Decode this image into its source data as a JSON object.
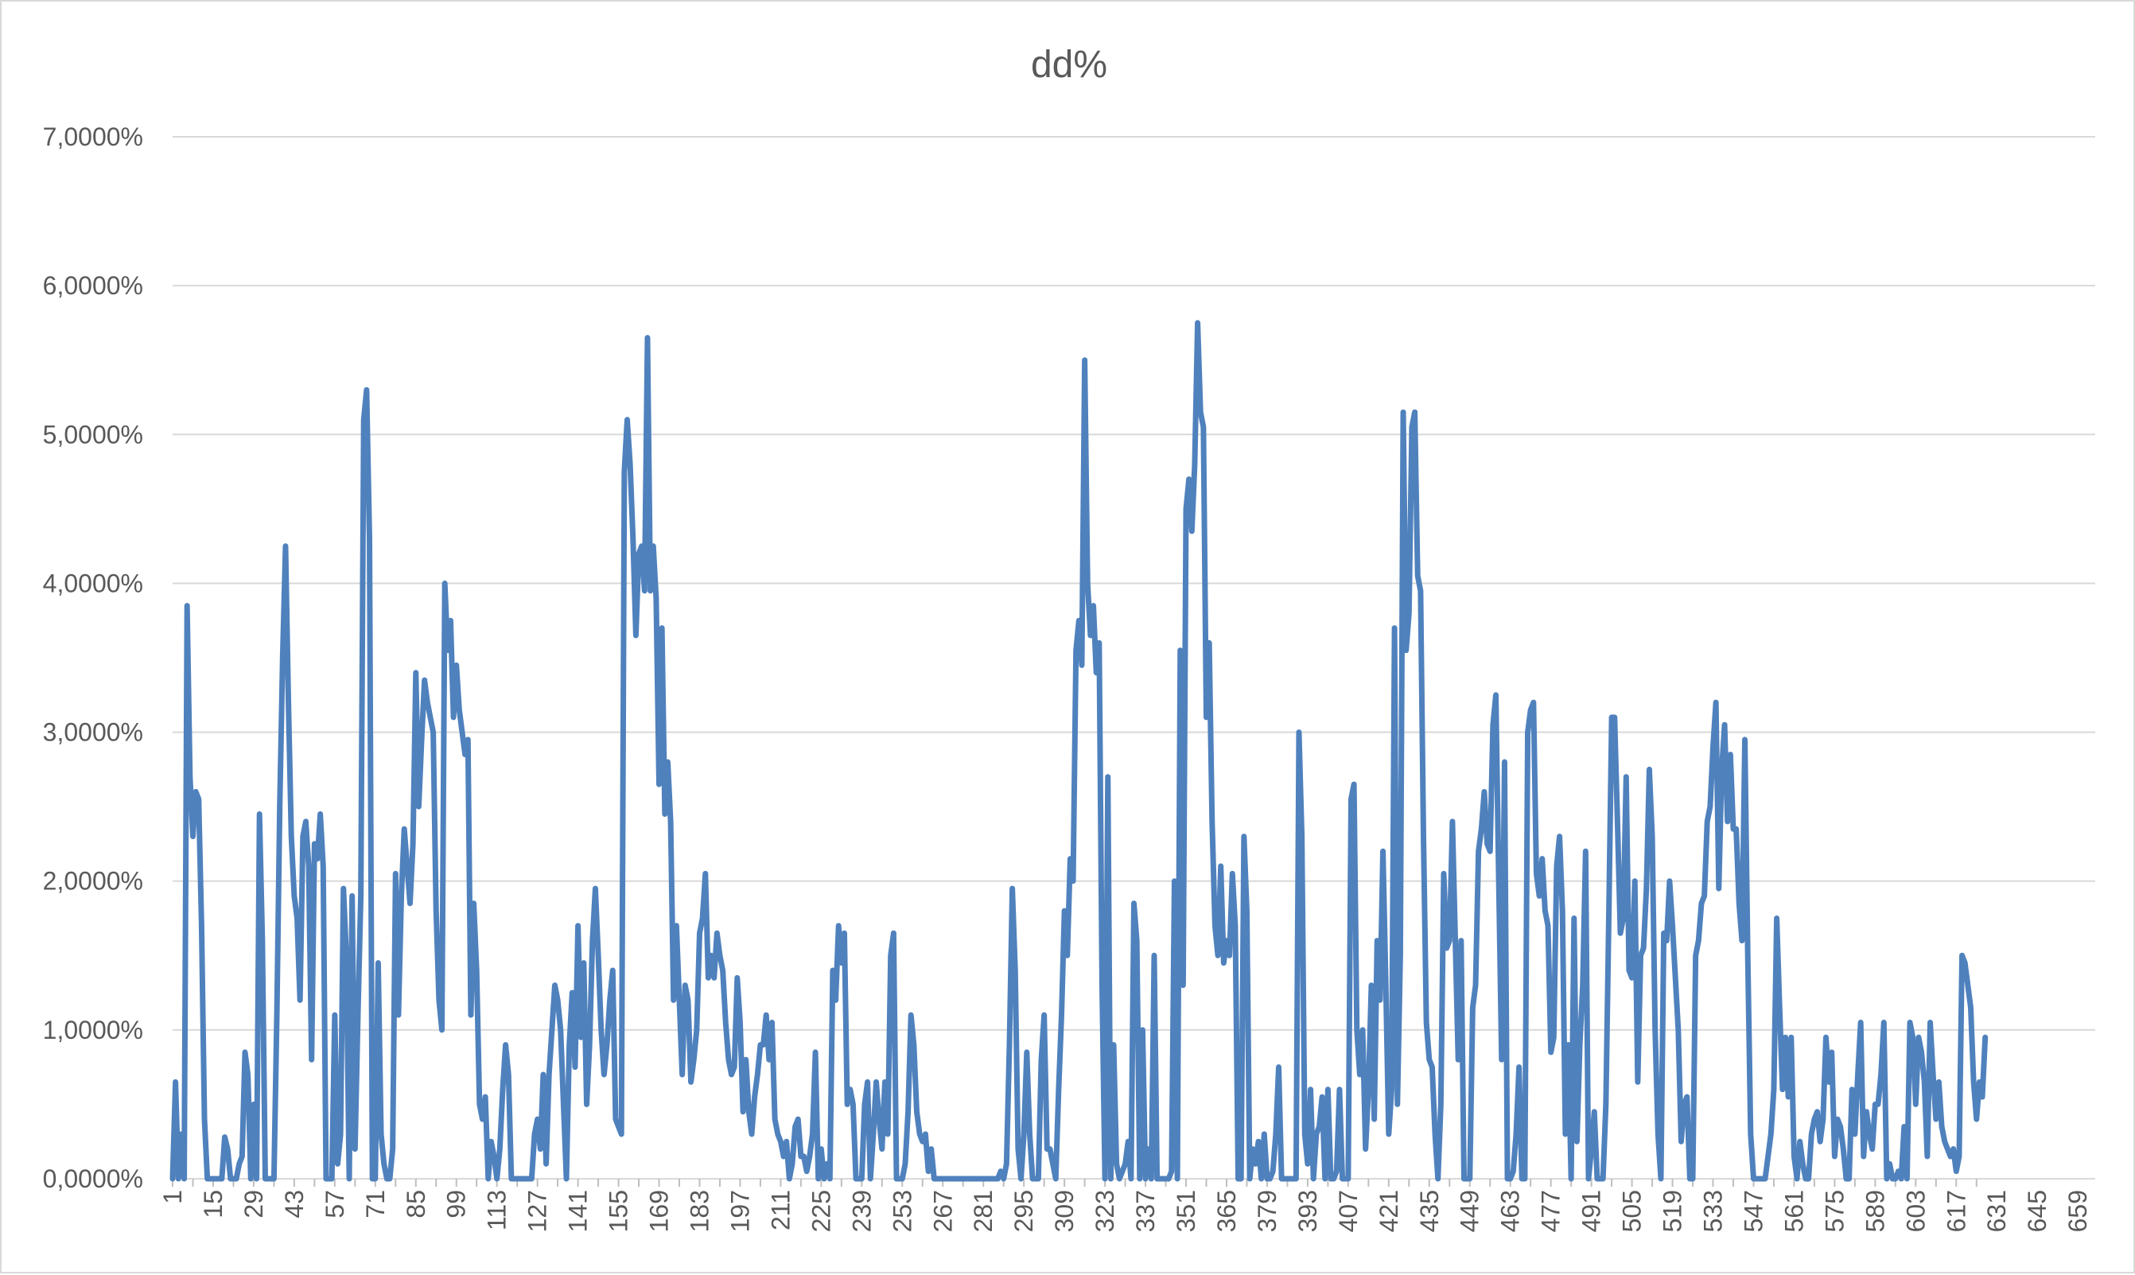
{
  "chart_data": {
    "type": "line",
    "title": "dd%",
    "xlabel": "",
    "ylabel": "",
    "ylim": [
      0,
      7
    ],
    "y_ticks": [
      0,
      1,
      2,
      3,
      4,
      5,
      6,
      7
    ],
    "y_tick_labels": [
      "0,0000%",
      "1,0000%",
      "2,0000%",
      "3,0000%",
      "4,0000%",
      "5,0000%",
      "6,0000%",
      "7,0000%"
    ],
    "x_range": [
      1,
      665
    ],
    "x_tick_labels": [
      "1",
      "15",
      "29",
      "43",
      "57",
      "71",
      "85",
      "99",
      "113",
      "127",
      "141",
      "155",
      "169",
      "183",
      "197",
      "211",
      "225",
      "239",
      "253",
      "267",
      "281",
      "295",
      "309",
      "323",
      "337",
      "351",
      "365",
      "379",
      "393",
      "407",
      "421",
      "435",
      "449",
      "463",
      "477",
      "491",
      "505",
      "519",
      "533",
      "547",
      "561",
      "575",
      "589",
      "603",
      "617",
      "631",
      "645",
      "659"
    ],
    "grid": true,
    "legend": "none",
    "series_color": "#4f81bd",
    "series": [
      {
        "values": [
          0,
          0.65,
          0,
          0.3,
          0,
          3.85,
          2.7,
          2.3,
          2.6,
          2.55,
          1.7,
          0.4,
          0,
          0,
          0,
          0,
          0,
          0,
          0.28,
          0.2,
          0,
          0,
          0,
          0.1,
          0.15,
          0.85,
          0.7,
          0,
          0.5,
          0,
          2.45,
          1.6,
          0,
          0,
          0,
          0,
          1.1,
          2.5,
          3.5,
          4.25,
          3.2,
          2.3,
          1.9,
          1.75,
          1.2,
          2.3,
          2.4,
          2.1,
          0.8,
          2.25,
          2.15,
          2.45,
          2.1,
          0,
          0,
          0,
          1.1,
          0.1,
          0.3,
          1.95,
          1.5,
          0,
          1.9,
          0.2,
          1.1,
          1.9,
          5.1,
          5.3,
          4.3,
          0,
          0,
          1.45,
          0.3,
          0.1,
          0,
          0,
          0.2,
          2.05,
          1.1,
          1.9,
          2.35,
          2.1,
          1.85,
          2.25,
          3.4,
          2.5,
          2.95,
          3.35,
          3.2,
          3.1,
          3.0,
          1.8,
          1.2,
          1.0,
          4.0,
          3.55,
          3.75,
          3.1,
          3.45,
          3.15,
          3.0,
          2.85,
          2.95,
          1.1,
          1.85,
          1.4,
          0.5,
          0.4,
          0.55,
          0,
          0.25,
          0.15,
          0,
          0.2,
          0.6,
          0.9,
          0.7,
          0,
          0,
          0,
          0,
          0,
          0,
          0,
          0,
          0.3,
          0.4,
          0.2,
          0.7,
          0.1,
          0.7,
          1.0,
          1.3,
          1.2,
          1.0,
          0.5,
          0,
          0.9,
          1.25,
          0.75,
          1.7,
          0.95,
          1.45,
          0.5,
          0.9,
          1.6,
          1.95,
          1.5,
          1.0,
          0.7,
          0.9,
          1.2,
          1.4,
          0.4,
          0.35,
          0.3,
          4.75,
          5.1,
          4.8,
          4.3,
          3.65,
          4.2,
          4.25,
          3.95,
          5.65,
          3.95,
          4.25,
          3.9,
          2.65,
          3.7,
          2.45,
          2.8,
          2.4,
          1.2,
          1.7,
          1.2,
          0.7,
          1.3,
          1.2,
          0.65,
          0.8,
          1.0,
          1.65,
          1.75,
          2.05,
          1.35,
          1.5,
          1.35,
          1.65,
          1.5,
          1.4,
          1.05,
          0.8,
          0.7,
          0.75,
          1.35,
          1.05,
          0.45,
          0.8,
          0.45,
          0.3,
          0.55,
          0.7,
          0.9,
          0.9,
          1.1,
          0.8,
          1.05,
          0.4,
          0.3,
          0.25,
          0.15,
          0.25,
          0,
          0.1,
          0.35,
          0.4,
          0.15,
          0.15,
          0.05,
          0.15,
          0.3,
          0.85,
          0,
          0.2,
          0,
          0.1,
          0,
          1.4,
          1.2,
          1.7,
          1.45,
          1.65,
          0.5,
          0.6,
          0.5,
          0,
          0,
          0,
          0.5,
          0.65,
          0,
          0.3,
          0.65,
          0.4,
          0.2,
          0.65,
          0.3,
          1.5,
          1.65,
          0,
          0,
          0,
          0.1,
          0.45,
          1.1,
          0.9,
          0.45,
          0.3,
          0.25,
          0.3,
          0.05,
          0.2,
          0,
          0,
          0,
          0,
          0,
          0,
          0,
          0,
          0,
          0,
          0,
          0,
          0,
          0,
          0,
          0,
          0,
          0,
          0,
          0,
          0,
          0,
          0,
          0.05,
          0,
          0.1,
          0.9,
          1.95,
          1.4,
          0.2,
          0,
          0.3,
          0.85,
          0.3,
          0,
          0,
          0,
          0.8,
          1.1,
          0.2,
          0.2,
          0.1,
          0,
          0.6,
          1.1,
          1.8,
          1.5,
          2.15,
          2.0,
          3.55,
          3.75,
          3.45,
          5.5,
          4.0,
          3.65,
          3.85,
          3.4,
          3.6,
          1.3,
          0,
          2.7,
          0,
          0.9,
          0.1,
          0,
          0.05,
          0.1,
          0.25,
          0,
          1.85,
          1.6,
          0,
          1.0,
          0,
          0.2,
          0,
          1.5,
          0,
          0,
          0,
          0,
          0,
          0.05,
          2.0,
          0,
          3.55,
          1.3,
          4.5,
          4.7,
          4.35,
          4.8,
          5.75,
          5.15,
          5.05,
          3.1,
          3.6,
          2.4,
          1.7,
          1.5,
          2.1,
          1.45,
          1.6,
          1.5,
          2.05,
          1.7,
          0,
          0,
          2.3,
          1.8,
          0,
          0.2,
          0.1,
          0.25,
          0,
          0.3,
          0,
          0,
          0.05,
          0.3,
          0.75,
          0,
          0,
          0,
          0,
          0,
          0,
          3.0,
          2.3,
          0.3,
          0.1,
          0.6,
          0,
          0.3,
          0.35,
          0.55,
          0,
          0.6,
          0,
          0,
          0.05,
          0.6,
          0,
          0,
          0,
          2.55,
          2.65,
          1.0,
          0.7,
          1.0,
          0.2,
          0.6,
          1.3,
          0.4,
          1.6,
          1.2,
          2.2,
          1.3,
          0.3,
          0.6,
          3.7,
          0.5,
          1.5,
          5.15,
          3.55,
          3.8,
          5.05,
          5.15,
          4.05,
          3.95,
          2.3,
          1.05,
          0.8,
          0.75,
          0.3,
          0,
          0.5,
          2.05,
          1.55,
          1.6,
          2.4,
          1.6,
          0.8,
          1.6,
          0,
          0,
          0,
          1.15,
          1.3,
          2.2,
          2.35,
          2.6,
          2.25,
          2.2,
          3.05,
          3.25,
          2.0,
          0.8,
          2.8,
          0,
          0,
          0.05,
          0.3,
          0.75,
          0,
          0,
          3.0,
          3.15,
          3.2,
          2.05,
          1.9,
          2.15,
          1.8,
          1.7,
          0.85,
          0.95,
          2.1,
          2.3,
          1.8,
          0.3,
          0.9,
          0,
          1.75,
          0.25,
          0.9,
          1.3,
          2.2,
          0,
          0.2,
          0.45,
          0,
          0,
          0,
          0.5,
          1.75,
          3.1,
          3.1,
          2.4,
          1.65,
          1.75,
          2.7,
          1.4,
          1.35,
          2.0,
          0.65,
          1.5,
          1.55,
          1.95,
          2.75,
          2.3,
          1.0,
          0.3,
          0,
          1.65,
          1.6,
          2.0,
          1.7,
          1.35,
          1.0,
          0.25,
          0.5,
          0.55,
          0,
          0,
          1.5,
          1.6,
          1.85,
          1.9,
          2.4,
          2.5,
          2.9,
          3.2,
          1.95,
          2.75,
          3.05,
          2.4,
          2.85,
          2.35,
          2.35,
          1.85,
          1.6,
          2.95,
          1.5,
          0.3,
          0,
          0,
          0,
          0,
          0,
          0.15,
          0.3,
          0.6,
          1.75,
          1.15,
          0.6,
          0.95,
          0.55,
          0.95,
          0.15,
          0,
          0.25,
          0.1,
          0,
          0,
          0.3,
          0.4,
          0.45,
          0.25,
          0.4,
          0.95,
          0.65,
          0.85,
          0.15,
          0.4,
          0.35,
          0.2,
          0,
          0,
          0.6,
          0.3,
          0.7,
          1.05,
          0.15,
          0.45,
          0.3,
          0.2,
          0.5,
          0.5,
          0.7,
          1.05,
          0,
          0.1,
          0,
          0,
          0.05,
          0,
          0.35,
          0,
          1.05,
          0.95,
          0.5,
          0.95,
          0.85,
          0.65,
          0.15,
          1.05,
          0.7,
          0.4,
          0.65,
          0.35,
          0.25,
          0.2,
          0.15,
          0.2,
          0.05,
          0.15,
          1.5,
          1.45,
          1.3,
          1.15,
          0.65,
          0.4,
          0.65,
          0.55,
          0.95
        ]
      }
    ]
  }
}
